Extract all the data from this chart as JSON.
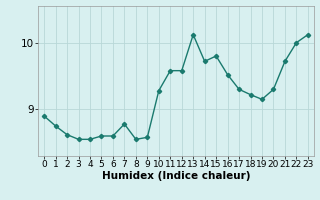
{
  "x": [
    0,
    1,
    2,
    3,
    4,
    5,
    6,
    7,
    8,
    9,
    10,
    11,
    12,
    13,
    14,
    15,
    16,
    17,
    18,
    19,
    20,
    21,
    22,
    23
  ],
  "y": [
    8.9,
    8.75,
    8.62,
    8.55,
    8.55,
    8.6,
    8.6,
    8.78,
    8.55,
    8.58,
    9.28,
    9.58,
    9.58,
    10.12,
    9.72,
    9.8,
    9.52,
    9.3,
    9.22,
    9.15,
    9.3,
    9.72,
    10.0,
    10.12
  ],
  "xlabel": "Humidex (Indice chaleur)",
  "xlim": [
    -0.5,
    23.5
  ],
  "ylim": [
    8.3,
    10.55
  ],
  "yticks": [
    9,
    10
  ],
  "xticks": [
    0,
    1,
    2,
    3,
    4,
    5,
    6,
    7,
    8,
    9,
    10,
    11,
    12,
    13,
    14,
    15,
    16,
    17,
    18,
    19,
    20,
    21,
    22,
    23
  ],
  "line_color": "#1a7a6e",
  "marker": "D",
  "marker_size": 2.2,
  "bg_color": "#d8f0f0",
  "grid_color": "#b8d8d8",
  "line_width": 1.0,
  "tick_fontsize": 6.5,
  "xlabel_fontsize": 7.5,
  "ytick_fontsize": 7.5
}
